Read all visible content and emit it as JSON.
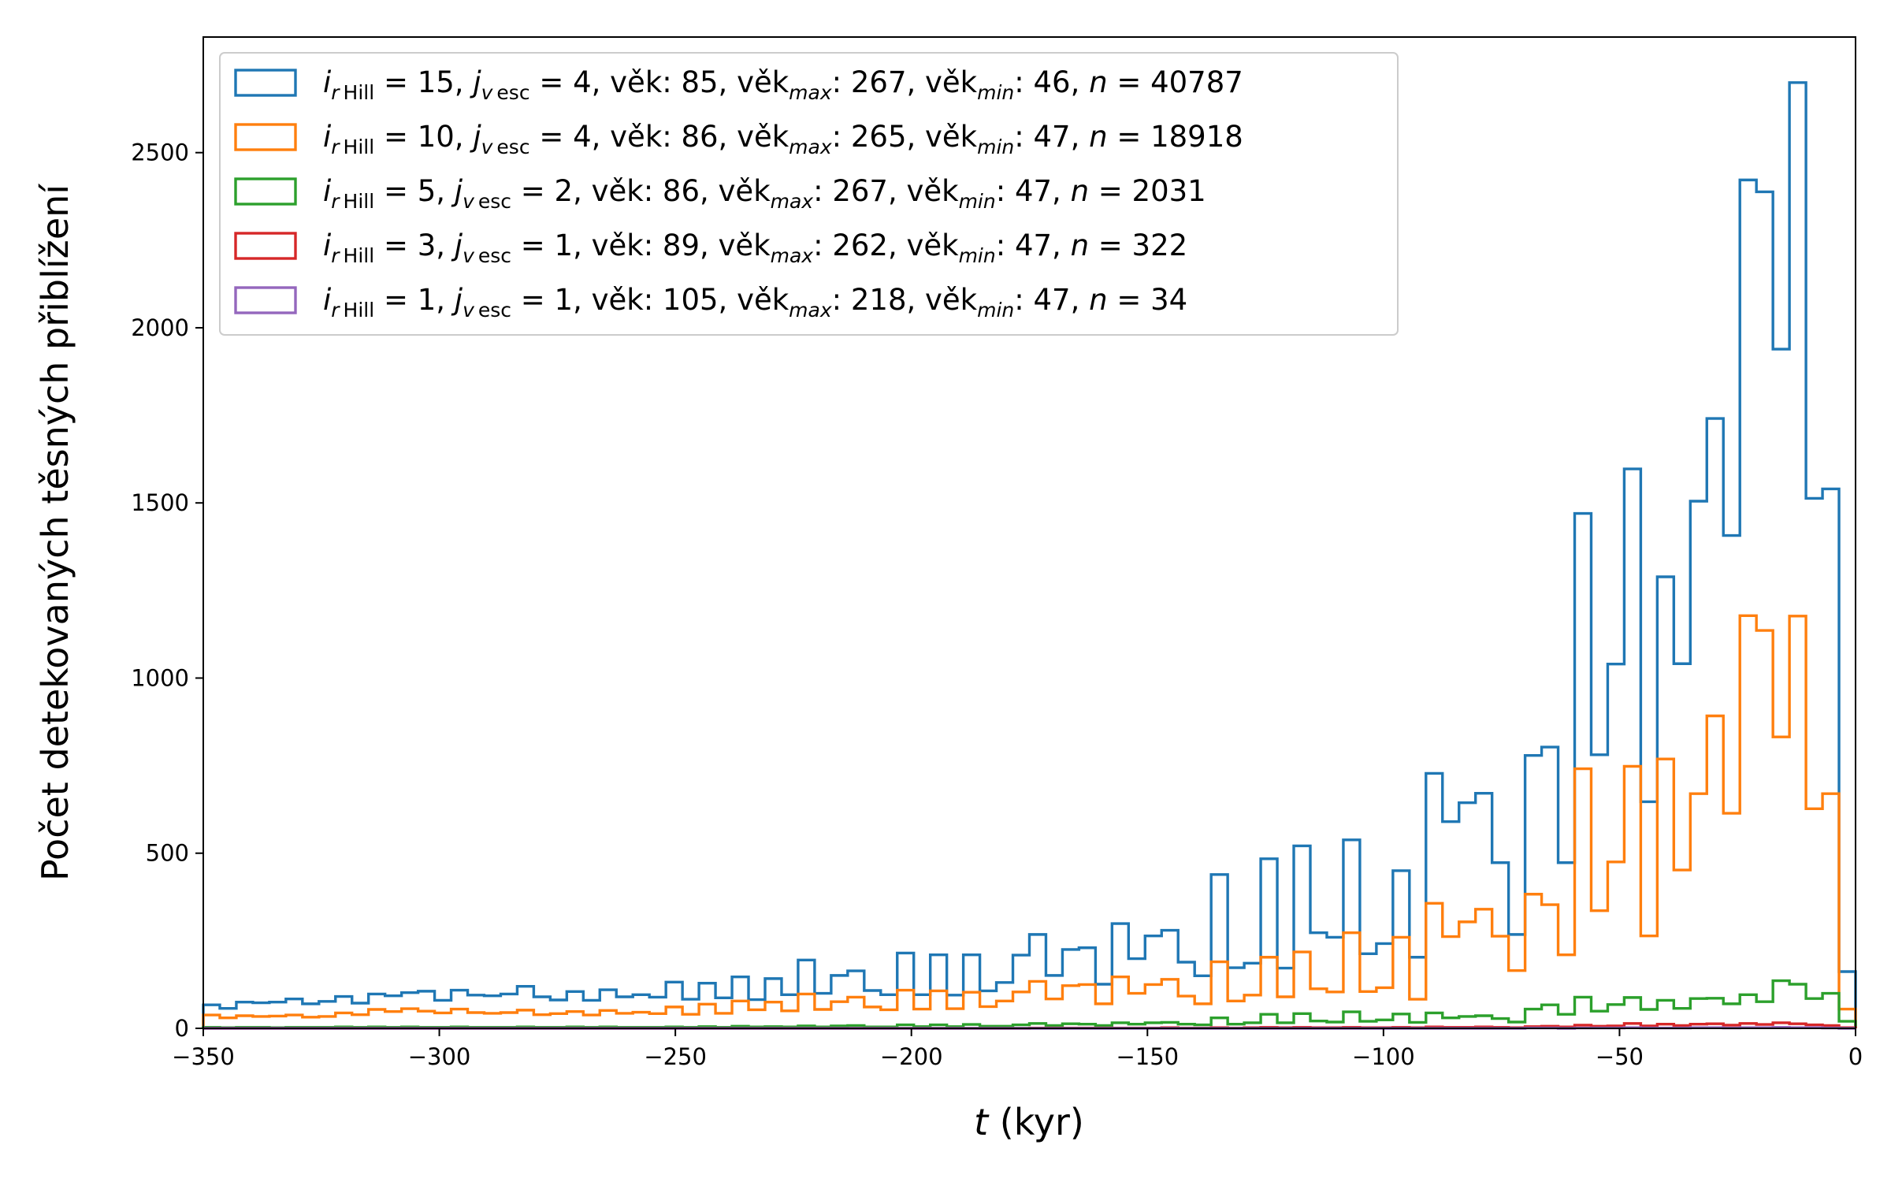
{
  "chart_data": {
    "type": "histogram-step",
    "xlabel_italic": "t",
    "xlabel_rest": " (kyr)",
    "ylabel": "Počet detekovaných těsných přiblížení",
    "xlim": [
      -350,
      0
    ],
    "ylim": [
      0,
      2830
    ],
    "xticks": [
      -350,
      -300,
      -250,
      -200,
      -150,
      -100,
      -50,
      0
    ],
    "xtick_labels": [
      "−350",
      "−300",
      "−250",
      "−200",
      "−150",
      "−100",
      "−50",
      "0"
    ],
    "yticks": [
      0,
      500,
      1000,
      1500,
      2000,
      2500
    ],
    "ytick_labels": [
      "0",
      "500",
      "1000",
      "1500",
      "2000",
      "2500"
    ],
    "grid": false,
    "legend_position": "top-left",
    "bin_start": -350,
    "bin_width": 3.5,
    "bins": 100,
    "series": [
      {
        "name": "i_rHill = 15, j_vesc = 4, věk: 85, věk_max: 267, věk_min: 46, n = 40787",
        "color": "#1f77b4",
        "values": [
          67,
          57,
          75,
          73,
          75,
          84,
          70,
          77,
          91,
          72,
          98,
          93,
          102,
          106,
          80,
          109,
          95,
          93,
          98,
          120,
          90,
          81,
          105,
          80,
          110,
          90,
          96,
          89,
          132,
          83,
          129,
          87,
          147,
          82,
          142,
          96,
          195,
          100,
          151,
          164,
          108,
          96,
          215,
          96,
          210,
          95,
          210,
          107,
          131,
          209,
          268,
          151,
          225,
          230,
          126,
          299,
          199,
          264,
          280,
          189,
          150,
          439,
          173,
          186,
          484,
          172,
          521,
          273,
          260,
          538,
          213,
          242,
          450,
          203,
          728,
          590,
          644,
          671,
          473,
          268,
          779,
          803,
          473,
          1470,
          781,
          1040,
          1597,
          647,
          1289,
          1041,
          1505,
          1741,
          1407,
          2422,
          2388,
          1939,
          2700,
          1513,
          1540,
          162
        ]
      },
      {
        "name": "i_rHill = 10, j_vesc = 4, věk: 86, věk_max: 265, věk_min: 47, n = 18918",
        "color": "#ff7f0e",
        "values": [
          38,
          30,
          36,
          34,
          35,
          38,
          32,
          34,
          44,
          39,
          54,
          48,
          56,
          49,
          44,
          55,
          45,
          43,
          45,
          52,
          39,
          42,
          48,
          38,
          51,
          43,
          46,
          42,
          61,
          40,
          69,
          43,
          78,
          53,
          75,
          50,
          98,
          54,
          76,
          89,
          61,
          53,
          109,
          55,
          107,
          56,
          103,
          62,
          78,
          104,
          134,
          84,
          122,
          125,
          70,
          147,
          100,
          125,
          140,
          92,
          70,
          190,
          78,
          95,
          203,
          90,
          218,
          113,
          104,
          273,
          105,
          116,
          260,
          83,
          357,
          262,
          304,
          340,
          263,
          165,
          383,
          353,
          210,
          741,
          336,
          475,
          748,
          264,
          769,
          452,
          670,
          892,
          614,
          1178,
          1136,
          832,
          1177,
          627,
          670,
          55
        ]
      },
      {
        "name": "i_rHill = 5, j_vesc = 2, věk: 86, věk_max: 267, věk_min: 47, n = 2031",
        "color": "#2ca02c",
        "values": [
          3,
          2,
          3,
          3,
          2,
          3,
          3,
          3,
          4,
          3,
          4,
          3,
          4,
          3,
          3,
          4,
          3,
          3,
          3,
          4,
          3,
          3,
          4,
          3,
          4,
          3,
          3,
          3,
          4,
          3,
          5,
          3,
          6,
          4,
          5,
          4,
          7,
          4,
          7,
          8,
          4,
          4,
          10,
          5,
          10,
          5,
          11,
          6,
          6,
          10,
          14,
          8,
          13,
          12,
          8,
          16,
          12,
          16,
          17,
          12,
          10,
          30,
          12,
          16,
          40,
          16,
          42,
          21,
          18,
          47,
          20,
          24,
          41,
          17,
          44,
          30,
          34,
          36,
          28,
          18,
          55,
          67,
          40,
          89,
          49,
          68,
          88,
          54,
          80,
          57,
          85,
          86,
          70,
          96,
          76,
          136,
          126,
          85,
          100,
          20
        ]
      },
      {
        "name": "i_rHill = 3, j_vesc = 1, věk: 89, věk_max: 262, věk_min: 47, n = 322",
        "color": "#d62728",
        "values": [
          0,
          0,
          0,
          0,
          0,
          0,
          0,
          0,
          0,
          0,
          0,
          0,
          0,
          0,
          0,
          0,
          0,
          0,
          0,
          0,
          0,
          0,
          0,
          0,
          0,
          0,
          0,
          0,
          0,
          0,
          0,
          0,
          0,
          0,
          0,
          0,
          0,
          0,
          0,
          0,
          0,
          0,
          0,
          0,
          0,
          0,
          0,
          0,
          0,
          0,
          1,
          1,
          1,
          1,
          1,
          1,
          1,
          1,
          2,
          1,
          1,
          2,
          1,
          2,
          3,
          2,
          3,
          2,
          2,
          3,
          2,
          2,
          3,
          2,
          4,
          3,
          3,
          4,
          3,
          2,
          5,
          6,
          4,
          9,
          6,
          7,
          14,
          7,
          12,
          8,
          12,
          13,
          9,
          14,
          11,
          16,
          13,
          10,
          8,
          2
        ]
      },
      {
        "name": "i_rHill = 1, j_vesc = 1, věk: 105, věk_max: 218, věk_min: 47, n = 34",
        "color": "#9467bd",
        "values": [
          0,
          0,
          0,
          0,
          0,
          0,
          0,
          0,
          0,
          0,
          0,
          0,
          0,
          0,
          0,
          0,
          0,
          0,
          0,
          0,
          0,
          0,
          0,
          0,
          0,
          0,
          0,
          0,
          0,
          0,
          0,
          0,
          0,
          0,
          0,
          0,
          0,
          0,
          0,
          0,
          0,
          0,
          0,
          0,
          0,
          0,
          0,
          0,
          0,
          0,
          0,
          0,
          0,
          0,
          0,
          0,
          0,
          0,
          0,
          0,
          0,
          0,
          0,
          0,
          0,
          0,
          0,
          0,
          0,
          0,
          0,
          0,
          0,
          0,
          0,
          0,
          0,
          0,
          0,
          0,
          1,
          1,
          0,
          1,
          1,
          1,
          2,
          1,
          1,
          1,
          2,
          2,
          1,
          2,
          2,
          3,
          2,
          2,
          1,
          0
        ]
      }
    ],
    "legend_rows": [
      {
        "p1": " = 15, ",
        "p2": " = 4, věk:  85, věk",
        "p3": ": 267, věk",
        "p4": ": 46, ",
        "p5": " = 40787"
      },
      {
        "p1": " = 10, ",
        "p2": " = 4, věk:  86, věk",
        "p3": ": 265, věk",
        "p4": ": 47, ",
        "p5": " = 18918"
      },
      {
        "p1": " =  5, ",
        "p2": " = 2, věk:  86, věk",
        "p3": ": 267, věk",
        "p4": ": 47, ",
        "p5": " = 2031"
      },
      {
        "p1": " =  3, ",
        "p2": " = 1, věk:  89, věk",
        "p3": ": 262, věk",
        "p4": ": 47, ",
        "p5": " = 322"
      },
      {
        "p1": " =  1, ",
        "p2": " = 1, věk: 105, věk",
        "p3": ": 218, věk",
        "p4": ": 47, ",
        "p5": " = 34"
      }
    ],
    "legend_symbols": {
      "i": "i",
      "r_hill": "r Hill",
      "j": "j",
      "v_esc": "v esc",
      "max": "max",
      "min": "min",
      "n": "n"
    }
  }
}
